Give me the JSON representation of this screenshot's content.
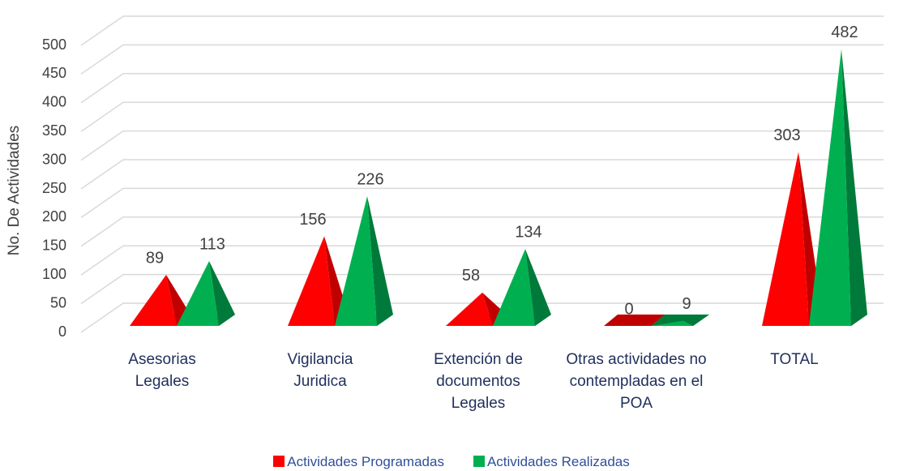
{
  "chart_data": {
    "type": "pyramid3d",
    "y_label": "No. De Actividades",
    "categories": [
      "Asesorias Legales",
      "Vigilancia Juridica",
      "Extención de documentos Legales",
      "Otras actividades no contempladas en el POA",
      "TOTAL"
    ],
    "series": [
      {
        "name": "Actividades Programadas",
        "color": "#ff0000",
        "shade": "#c00000",
        "values": [
          89,
          156,
          58,
          0,
          303
        ]
      },
      {
        "name": "Actividades Realizadas",
        "color": "#00b050",
        "shade": "#007a3a",
        "values": [
          113,
          226,
          134,
          9,
          482
        ]
      }
    ],
    "ylim": [
      0,
      500
    ],
    "yticks": [
      0,
      50,
      100,
      150,
      200,
      250,
      300,
      350,
      400,
      450,
      500
    ],
    "grid": true,
    "legend": "bottom"
  }
}
